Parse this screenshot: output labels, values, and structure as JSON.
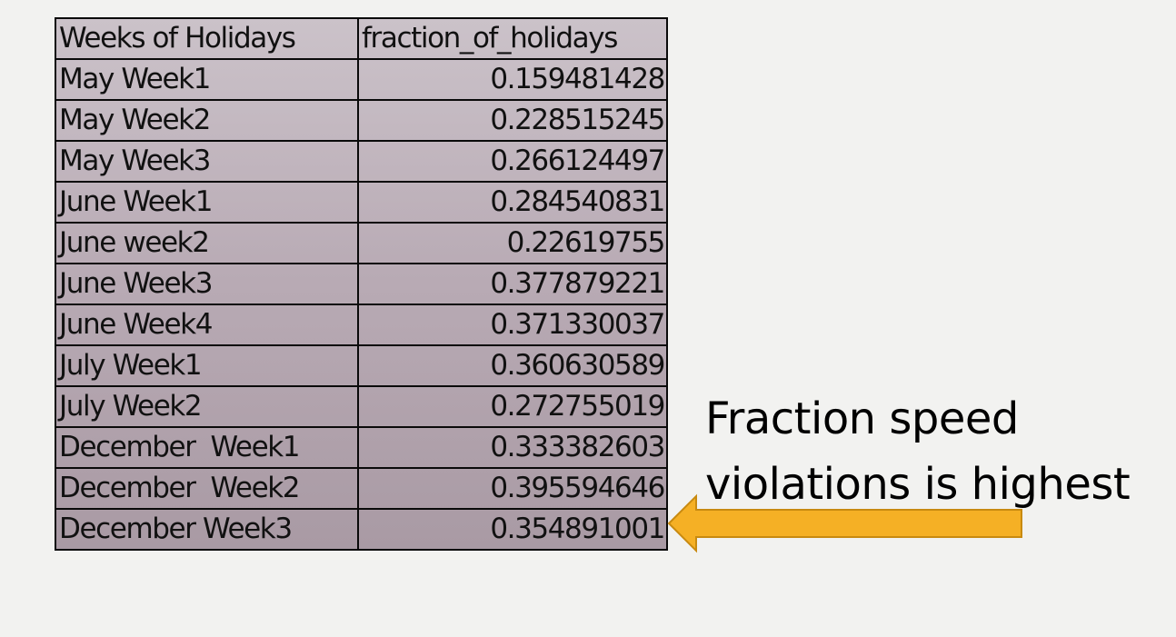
{
  "table": {
    "header": [
      "Weeks of Holidays",
      "fraction_of_holidays"
    ],
    "rows": [
      [
        "May Week1",
        "0.159481428"
      ],
      [
        "May Week2",
        "0.228515245"
      ],
      [
        "May Week3",
        "0.266124497"
      ],
      [
        "June Week1",
        "0.284540831"
      ],
      [
        "June week2",
        "0.22619755"
      ],
      [
        "June Week3",
        "0.377879221"
      ],
      [
        "June Week4",
        "0.371330037"
      ],
      [
        "July Week1",
        "0.360630589"
      ],
      [
        "July Week2",
        "0.272755019"
      ],
      [
        "December  Week1",
        "0.333382603"
      ],
      [
        "December  Week2",
        "0.395594646"
      ],
      [
        "December Week3",
        "0.354891001"
      ]
    ]
  },
  "callout": {
    "line1": "Fraction speed",
    "line2": "violations is highest"
  },
  "arrow": {
    "icon": "left-arrow-icon",
    "fill": "#f5b025",
    "stroke": "#c88a10"
  }
}
